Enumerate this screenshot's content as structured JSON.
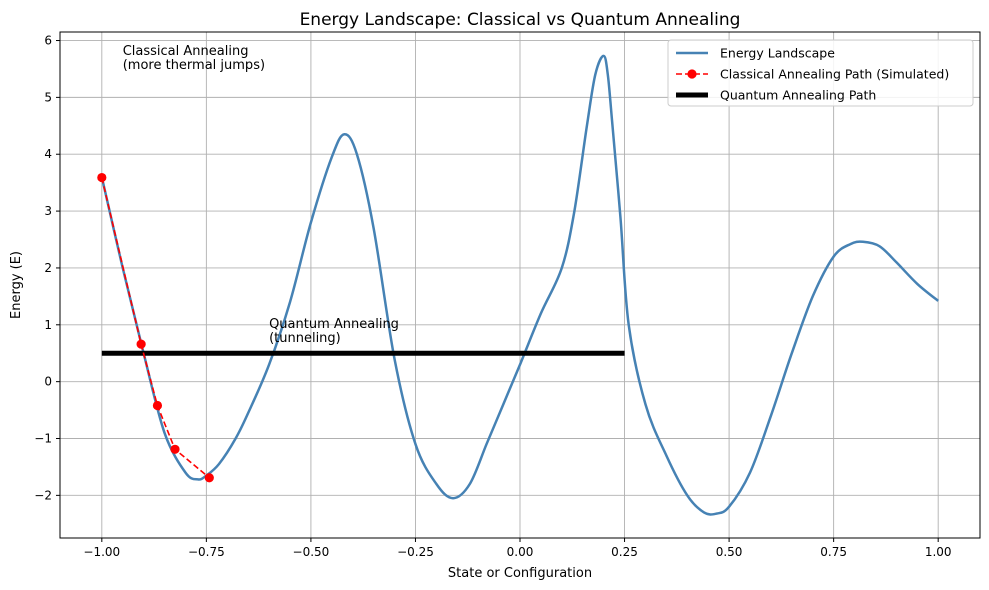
{
  "chart_data": {
    "type": "line",
    "title": "Energy Landscape: Classical vs Quantum Annealing",
    "xlabel": "State or Configuration",
    "ylabel": "Energy (E)",
    "xlim": [
      -1.1,
      1.1
    ],
    "ylim": [
      -2.75,
      6.15
    ],
    "xticks": [
      -1.0,
      -0.75,
      -0.5,
      -0.25,
      0.0,
      0.25,
      0.5,
      0.75,
      1.0
    ],
    "xtick_labels": [
      "−1.00",
      "−0.75",
      "−0.50",
      "−0.25",
      "0.00",
      "0.25",
      "0.50",
      "0.75",
      "1.00"
    ],
    "yticks": [
      -2,
      -1,
      0,
      1,
      2,
      3,
      4,
      5,
      6
    ],
    "ytick_labels": [
      "−2",
      "−1",
      "0",
      "1",
      "2",
      "3",
      "4",
      "5",
      "6"
    ],
    "grid": true,
    "legend_position": "top-right",
    "colors": {
      "energy": "#4682b4",
      "classical": "#ff0000",
      "quantum": "#000000",
      "grid": "#b0b0b0"
    },
    "series": [
      {
        "name": "Energy Landscape",
        "style": "solid",
        "x": [
          -1.0,
          -0.95,
          -0.9,
          -0.85,
          -0.8,
          -0.77,
          -0.75,
          -0.72,
          -0.68,
          -0.65,
          -0.6,
          -0.55,
          -0.5,
          -0.45,
          -0.42,
          -0.39,
          -0.35,
          -0.3,
          -0.25,
          -0.2,
          -0.16,
          -0.12,
          -0.08,
          -0.04,
          0.0,
          0.05,
          0.1,
          0.13,
          0.16,
          0.18,
          0.2,
          0.21,
          0.22,
          0.24,
          0.26,
          0.3,
          0.35,
          0.4,
          0.44,
          0.47,
          0.5,
          0.55,
          0.6,
          0.65,
          0.7,
          0.75,
          0.79,
          0.82,
          0.86,
          0.9,
          0.95,
          1.0
        ],
        "y": [
          3.6,
          2.0,
          0.5,
          -0.9,
          -1.6,
          -1.72,
          -1.65,
          -1.45,
          -1.0,
          -0.55,
          0.3,
          1.4,
          2.8,
          3.95,
          4.35,
          4.0,
          2.7,
          0.4,
          -1.1,
          -1.8,
          -2.05,
          -1.8,
          -1.1,
          -0.4,
          0.3,
          1.2,
          2.0,
          3.0,
          4.5,
          5.4,
          5.73,
          5.4,
          4.6,
          2.9,
          1.0,
          -0.4,
          -1.3,
          -2.0,
          -2.3,
          -2.32,
          -2.2,
          -1.6,
          -0.6,
          0.5,
          1.5,
          2.2,
          2.42,
          2.46,
          2.38,
          2.1,
          1.72,
          1.42
        ]
      },
      {
        "name": "Classical Annealing Path (Simulated)",
        "style": "dashed-markers",
        "x": [
          -1.0,
          -0.906,
          -0.867,
          -0.825,
          -0.743
        ],
        "y": [
          3.59,
          0.66,
          -0.42,
          -1.19,
          -1.69
        ]
      },
      {
        "name": "Quantum Annealing Path",
        "style": "thick",
        "x": [
          -1.0,
          0.25
        ],
        "y": [
          0.5,
          0.5
        ]
      }
    ],
    "annotations": [
      {
        "text_lines": [
          "Classical Annealing",
          "(more thermal jumps)"
        ],
        "x": -0.95,
        "y": 5.5,
        "color": "#ff0000"
      },
      {
        "text_lines": [
          "Quantum Annealing",
          "(tunneling)"
        ],
        "x": -0.6,
        "y": 0.7,
        "color": "#000000"
      }
    ]
  }
}
